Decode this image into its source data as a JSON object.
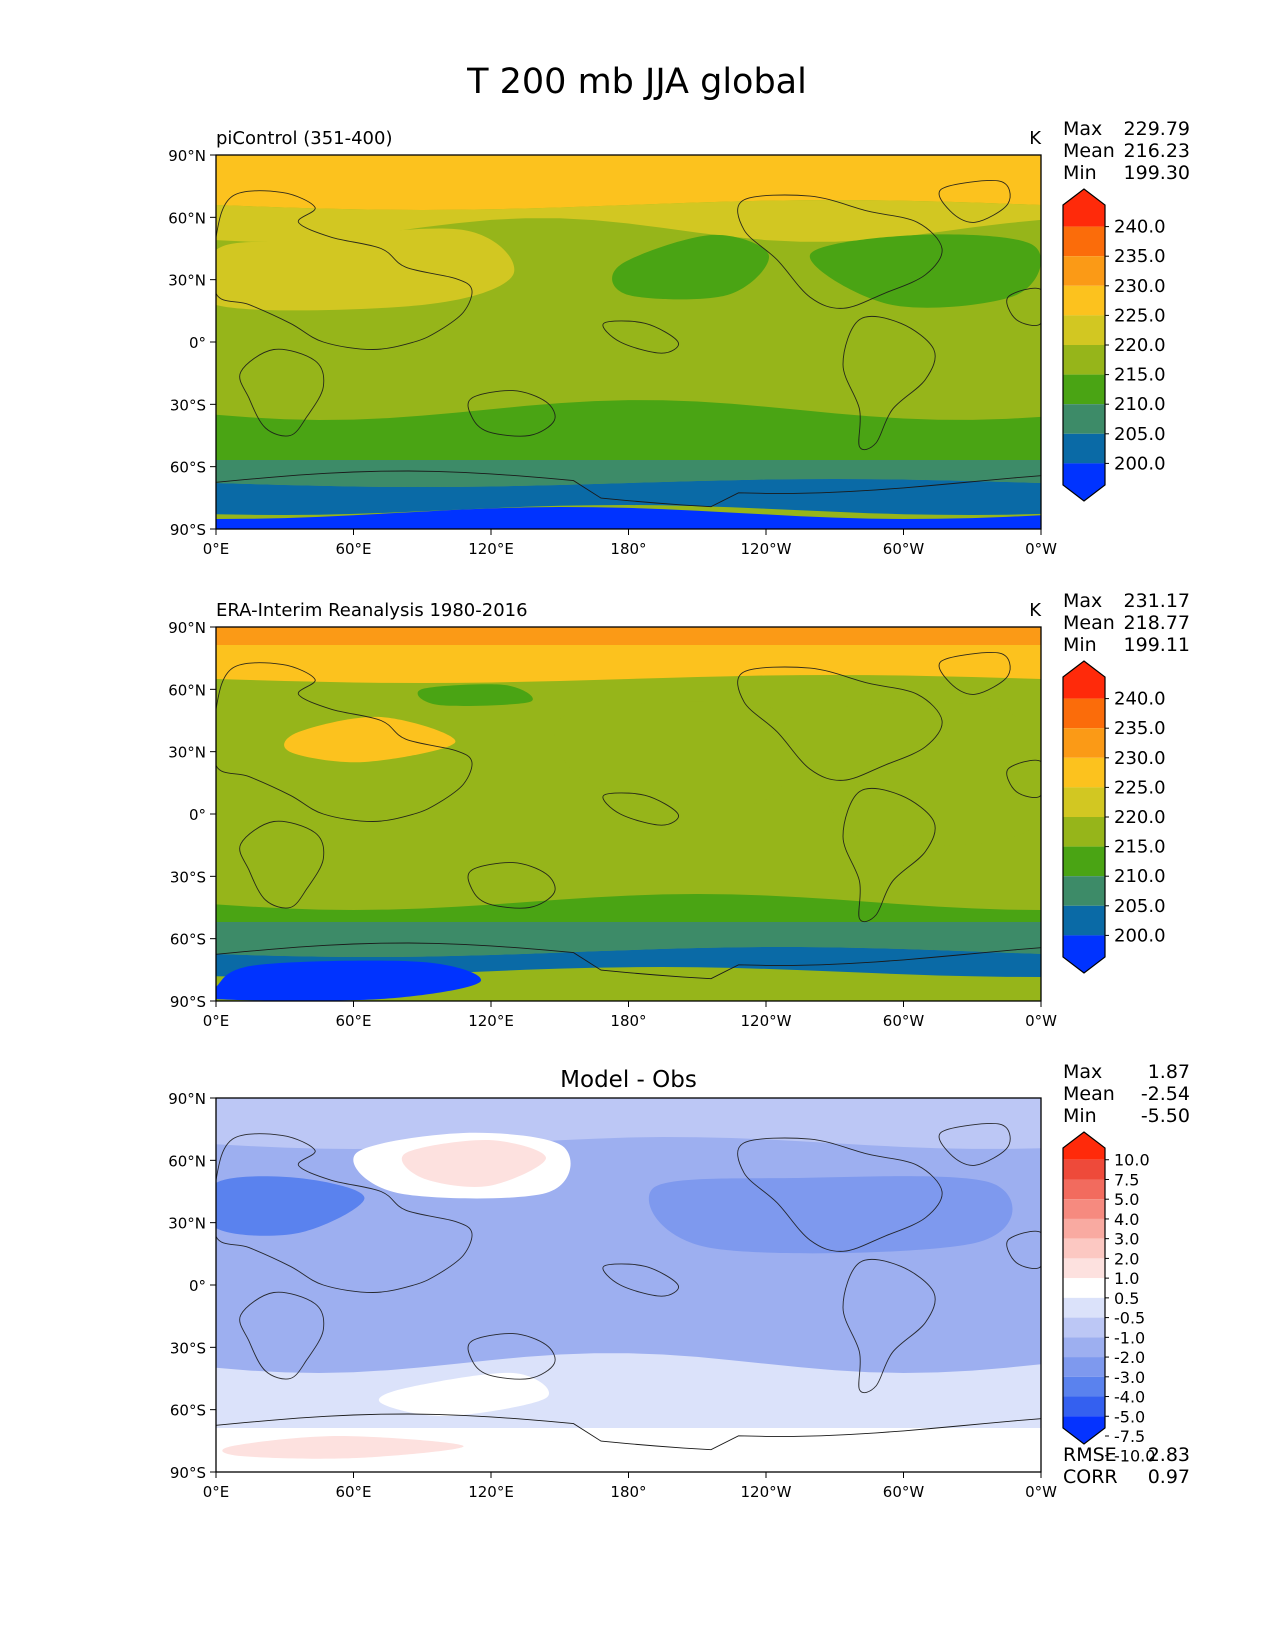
{
  "title": "T 200 mb JJA global",
  "colors": {
    "abs": [
      "#0033ff",
      "#0a6aa6",
      "#3d8b68",
      "#4aa414",
      "#96b51a",
      "#d2c722",
      "#fcc21e",
      "#fb9a16",
      "#fb6c0a",
      "#ff2a0a"
    ],
    "diff": [
      "#0533ff",
      "#3460f0",
      "#5a82ee",
      "#7e99ee",
      "#9daff0",
      "#bcc7f5",
      "#dbe2fa",
      "#ffffff",
      "#fde1df",
      "#fcc8c2",
      "#f9aaa1",
      "#f68a7f",
      "#f26b5e",
      "#ee4a3a",
      "#ff2a0a"
    ],
    "coast": "#1a1a1a"
  },
  "axes": {
    "lat_ticks": [
      "90°N",
      "60°N",
      "30°N",
      "0°",
      "30°S",
      "60°S",
      "90°S"
    ],
    "lon_ticks": [
      "0°E",
      "60°E",
      "120°E",
      "180°",
      "120°W",
      "60°W",
      "0°W"
    ]
  },
  "panels": [
    {
      "left_title": "piControl (351-400)",
      "center_title": "",
      "units": "K",
      "stats": [
        {
          "label": "Max",
          "value": "229.79"
        },
        {
          "label": "Mean",
          "value": "216.23"
        },
        {
          "label": "Min",
          "value": "199.30"
        }
      ],
      "colorbar_labels": [
        "240.0",
        "235.0",
        "230.0",
        "225.0",
        "220.0",
        "215.0",
        "210.0",
        "205.0",
        "200.0"
      ],
      "colorbar_type": "abs"
    },
    {
      "left_title": "ERA-Interim Reanalysis 1980-2016",
      "center_title": "",
      "units": "K",
      "stats": [
        {
          "label": "Max",
          "value": "231.17"
        },
        {
          "label": "Mean",
          "value": "218.77"
        },
        {
          "label": "Min",
          "value": "199.11"
        }
      ],
      "colorbar_labels": [
        "240.0",
        "235.0",
        "230.0",
        "225.0",
        "220.0",
        "215.0",
        "210.0",
        "205.0",
        "200.0"
      ],
      "colorbar_type": "abs"
    },
    {
      "left_title": "",
      "center_title": "Model - Obs",
      "units": "",
      "stats": [
        {
          "label": "Max",
          "value": "1.87"
        },
        {
          "label": "Mean",
          "value": "-2.54"
        },
        {
          "label": "Min",
          "value": "-5.50"
        }
      ],
      "colorbar_labels": [
        "10.0",
        "7.5",
        "5.0",
        "4.0",
        "3.0",
        "2.0",
        "1.0",
        "0.5",
        "-0.5",
        "-1.0",
        "-2.0",
        "-3.0",
        "-4.0",
        "-5.0",
        "-7.5",
        "-10.0"
      ],
      "colorbar_type": "diff",
      "extra_stats": [
        {
          "label": "RMSE",
          "value": "2.83"
        },
        {
          "label": "CORR",
          "value": "0.97"
        }
      ]
    }
  ]
}
